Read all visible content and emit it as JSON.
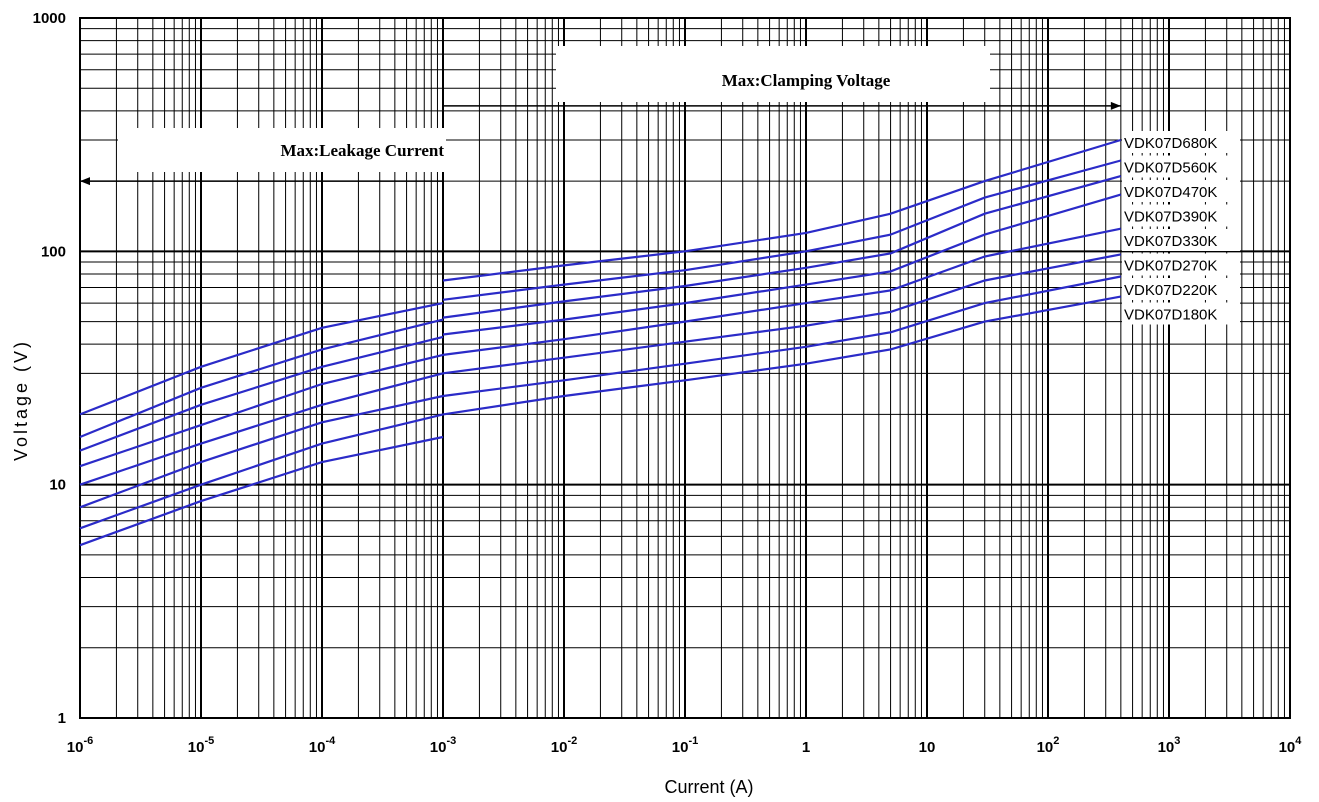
{
  "chart_data": {
    "type": "line",
    "x_scale": "log",
    "y_scale": "log",
    "xlim": [
      1e-06,
      10000
    ],
    "ylim": [
      1,
      1000
    ],
    "xlabel": "Current  (A)",
    "ylabel": "Voltage  (V)",
    "grid": true,
    "x_ticks": [
      {
        "value": 1e-06,
        "base": "10",
        "exp": "-6"
      },
      {
        "value": 1e-05,
        "base": "10",
        "exp": "-5"
      },
      {
        "value": 0.0001,
        "base": "10",
        "exp": "-4"
      },
      {
        "value": 0.001,
        "base": "10",
        "exp": "-3"
      },
      {
        "value": 0.01,
        "base": "10",
        "exp": "-2"
      },
      {
        "value": 0.1,
        "base": "10",
        "exp": "-1"
      },
      {
        "value": 1,
        "base": "1",
        "exp": ""
      },
      {
        "value": 10,
        "base": "10",
        "exp": ""
      },
      {
        "value": 100,
        "base": "10",
        "exp": "2"
      },
      {
        "value": 1000,
        "base": "10",
        "exp": "3"
      },
      {
        "value": 10000,
        "base": "10",
        "exp": "4"
      }
    ],
    "y_ticks": [
      {
        "value": 1,
        "label": "1"
      },
      {
        "value": 10,
        "label": "10"
      },
      {
        "value": 100,
        "label": "100"
      },
      {
        "value": 1000,
        "label": "1000"
      }
    ],
    "annotations": [
      {
        "text": "Max:Leakage Current",
        "arrow_from_x": 0.001,
        "arrow_to_x": 1e-06,
        "arrow_y": 200,
        "direction": "left"
      },
      {
        "text": "Max:Clamping Voltage",
        "arrow_from_x": 0.001,
        "arrow_to_x": 400,
        "arrow_y": 420,
        "direction": "right"
      }
    ],
    "line_color": "#2b2bc8",
    "series": [
      {
        "name": "VDK07D680K",
        "leakage": [
          [
            1e-06,
            20
          ],
          [
            1e-05,
            32
          ],
          [
            0.0001,
            47
          ],
          [
            0.001,
            60
          ]
        ],
        "clamping": [
          [
            0.001,
            75
          ],
          [
            0.01,
            87
          ],
          [
            0.1,
            100
          ],
          [
            1,
            120
          ],
          [
            5,
            145
          ],
          [
            30,
            200
          ],
          [
            400,
            300
          ]
        ]
      },
      {
        "name": "VDK07D560K",
        "leakage": [
          [
            1e-06,
            16
          ],
          [
            1e-05,
            26
          ],
          [
            0.0001,
            38
          ],
          [
            0.001,
            51
          ]
        ],
        "clamping": [
          [
            0.001,
            62
          ],
          [
            0.01,
            72
          ],
          [
            0.1,
            83
          ],
          [
            1,
            100
          ],
          [
            5,
            118
          ],
          [
            30,
            170
          ],
          [
            400,
            245
          ]
        ]
      },
      {
        "name": "VDK07D470K",
        "leakage": [
          [
            1e-06,
            14
          ],
          [
            1e-05,
            22
          ],
          [
            0.0001,
            32
          ],
          [
            0.001,
            43
          ]
        ],
        "clamping": [
          [
            0.001,
            52
          ],
          [
            0.01,
            61
          ],
          [
            0.1,
            71
          ],
          [
            1,
            85
          ],
          [
            5,
            98
          ],
          [
            30,
            145
          ],
          [
            400,
            210
          ]
        ]
      },
      {
        "name": "VDK07D390K",
        "leakage": [
          [
            1e-06,
            12
          ],
          [
            1e-05,
            18
          ],
          [
            0.0001,
            27
          ],
          [
            0.001,
            36
          ]
        ],
        "clamping": [
          [
            0.001,
            44
          ],
          [
            0.01,
            51
          ],
          [
            0.1,
            60
          ],
          [
            1,
            72
          ],
          [
            5,
            82
          ],
          [
            30,
            118
          ],
          [
            400,
            175
          ]
        ]
      },
      {
        "name": "VDK07D330K",
        "leakage": [
          [
            1e-06,
            10
          ],
          [
            1e-05,
            15
          ],
          [
            0.0001,
            22
          ],
          [
            0.001,
            30
          ]
        ],
        "clamping": [
          [
            0.001,
            36
          ],
          [
            0.01,
            42
          ],
          [
            0.1,
            50
          ],
          [
            1,
            60
          ],
          [
            5,
            68
          ],
          [
            30,
            95
          ],
          [
            400,
            125
          ]
        ]
      },
      {
        "name": "VDK07D270K",
        "leakage": [
          [
            1e-06,
            8
          ],
          [
            1e-05,
            12.5
          ],
          [
            0.0001,
            18.5
          ],
          [
            0.001,
            24
          ]
        ],
        "clamping": [
          [
            0.001,
            30
          ],
          [
            0.01,
            35
          ],
          [
            0.1,
            41
          ],
          [
            1,
            48
          ],
          [
            5,
            55
          ],
          [
            30,
            75
          ],
          [
            400,
            97
          ]
        ]
      },
      {
        "name": "VDK07D220K",
        "leakage": [
          [
            1e-06,
            6.5
          ],
          [
            1e-05,
            10
          ],
          [
            0.0001,
            15
          ],
          [
            0.001,
            20
          ]
        ],
        "clamping": [
          [
            0.001,
            24
          ],
          [
            0.01,
            28
          ],
          [
            0.1,
            33
          ],
          [
            1,
            39
          ],
          [
            5,
            45
          ],
          [
            30,
            60
          ],
          [
            400,
            78
          ]
        ]
      },
      {
        "name": "VDK07D180K",
        "leakage": [
          [
            1e-06,
            5.5
          ],
          [
            1e-05,
            8.5
          ],
          [
            0.0001,
            12.5
          ],
          [
            0.001,
            16
          ]
        ],
        "clamping": [
          [
            0.001,
            20
          ],
          [
            0.01,
            24
          ],
          [
            0.1,
            28
          ],
          [
            1,
            33
          ],
          [
            5,
            38
          ],
          [
            30,
            50
          ],
          [
            400,
            64
          ]
        ]
      }
    ]
  }
}
